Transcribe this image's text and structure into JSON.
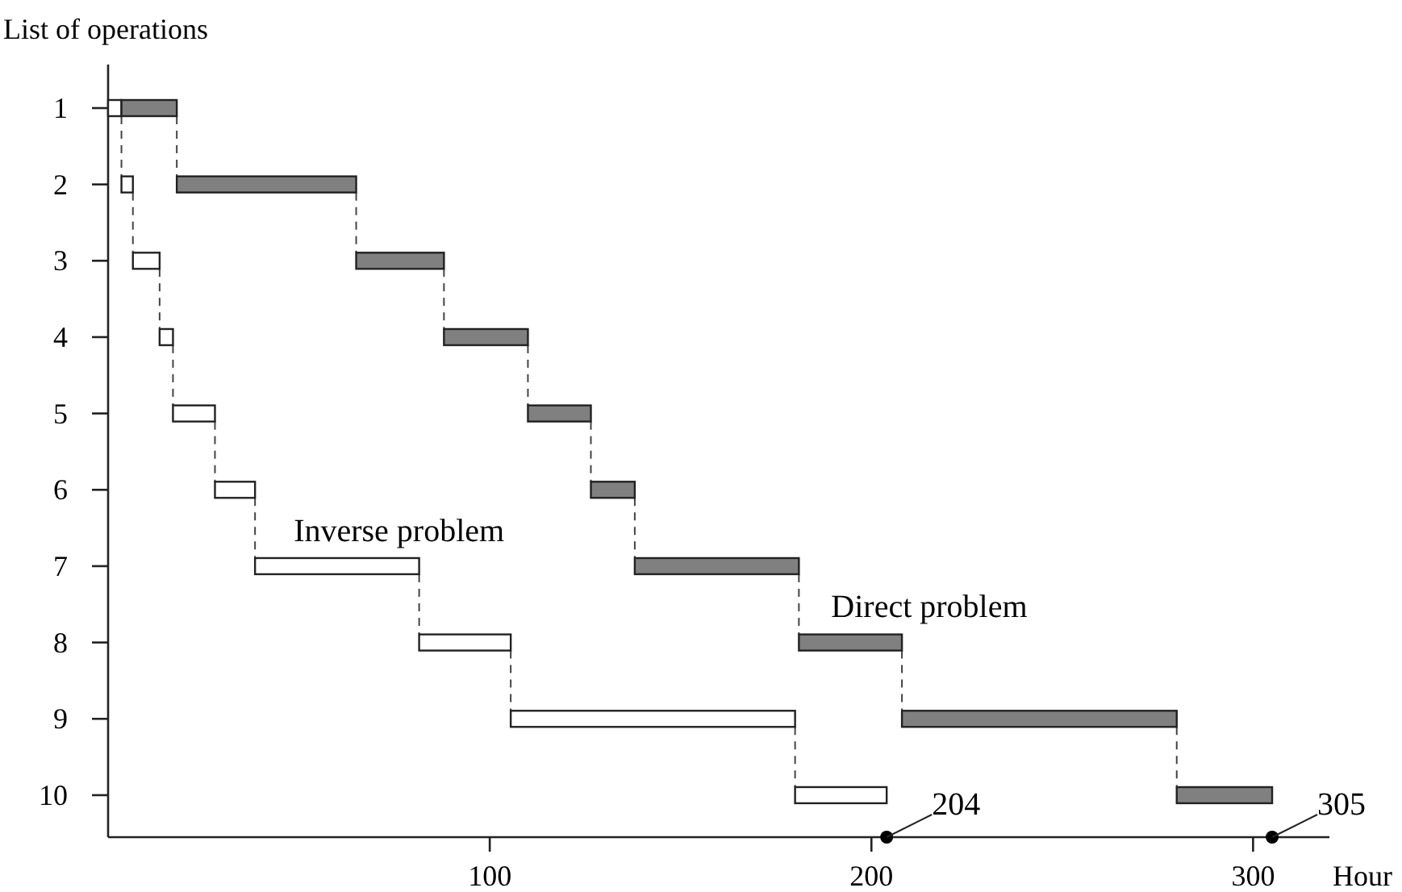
{
  "chart_data": {
    "type": "bar",
    "orientation": "horizontal",
    "ylabel": "List of operations",
    "xlabel": "Hour",
    "categories": [
      "1",
      "2",
      "3",
      "4",
      "5",
      "6",
      "7",
      "8",
      "9",
      "10"
    ],
    "series": [
      {
        "name": "Inverse problem",
        "color": "#ffffff",
        "base": [
          0,
          3.5,
          6.5,
          13.5,
          17,
          28,
          38.5,
          81.5,
          105.5,
          180
        ],
        "values": [
          3.5,
          3,
          7,
          3.5,
          11,
          10.5,
          43,
          24,
          74.5,
          24
        ]
      },
      {
        "name": "Direct problem",
        "color": "#808080",
        "base": [
          3.5,
          18,
          65,
          88,
          110,
          126.5,
          138,
          181,
          208,
          280
        ],
        "values": [
          14.5,
          47,
          23,
          22,
          16.5,
          11.5,
          43,
          27,
          72,
          25
        ]
      }
    ],
    "xlim": [
      0,
      320
    ],
    "xticks": [
      100,
      200,
      300
    ],
    "annotations": [
      {
        "text": "204",
        "x": 204
      },
      {
        "text": "305",
        "x": 305
      }
    ]
  }
}
